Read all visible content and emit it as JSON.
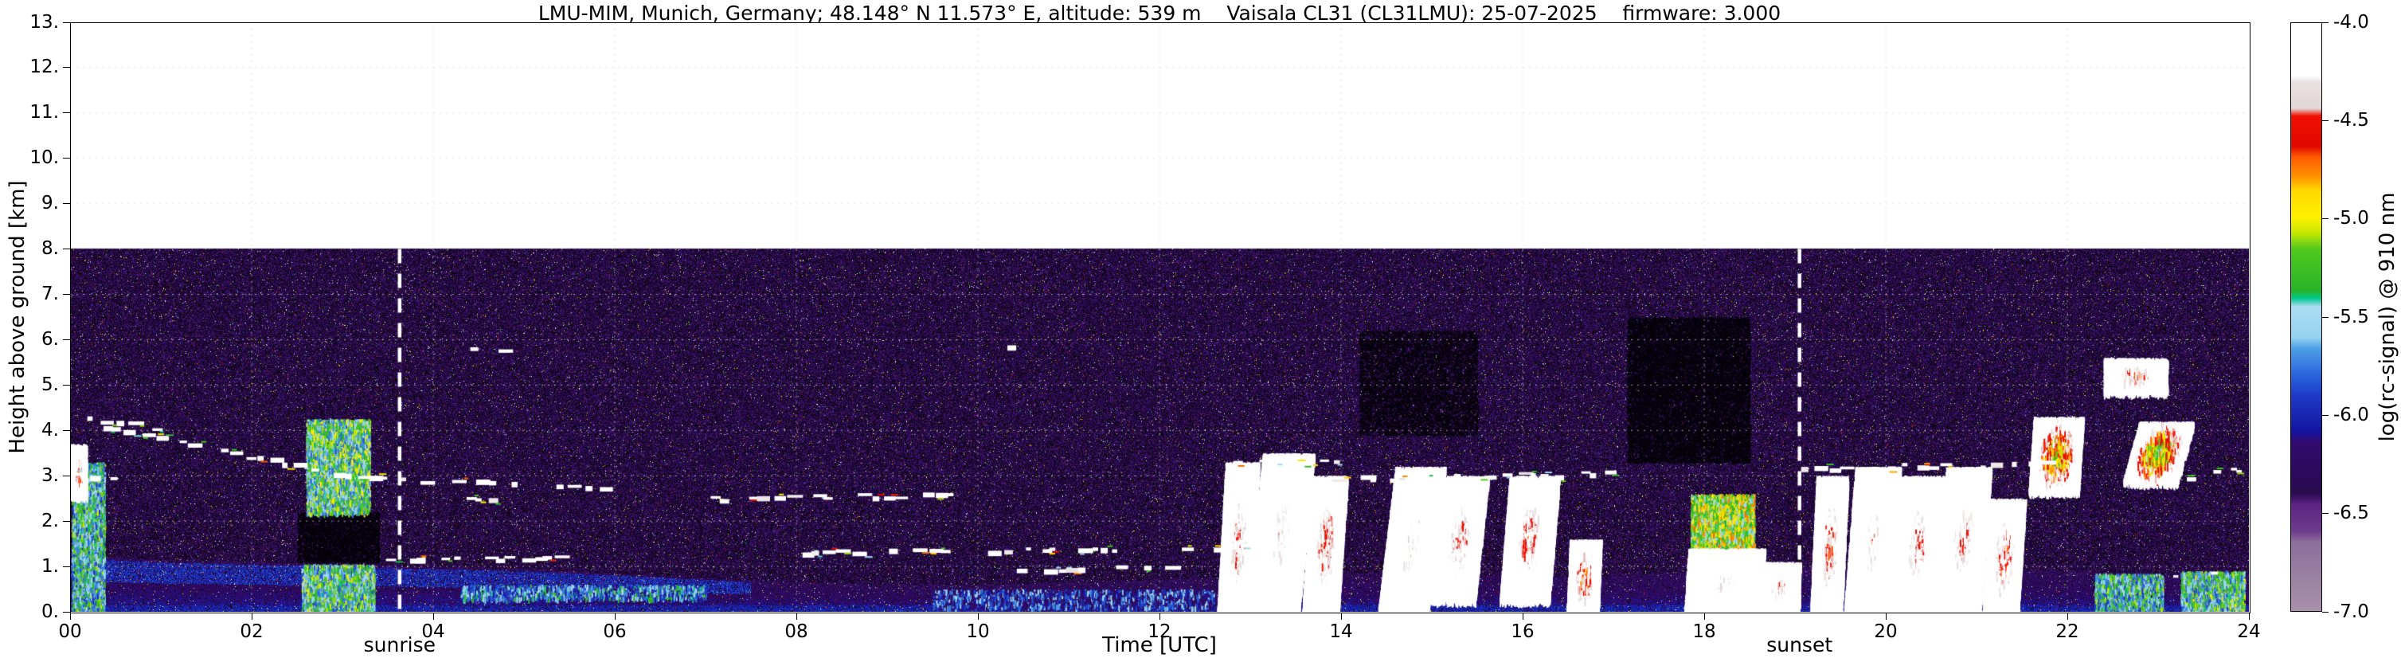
{
  "chart_data": {
    "type": "heatmap",
    "title": "LMU-MIM, Munich, Germany; 48.148° N 11.573° E, altitude: 539 m    Vaisala CL31 (CL31LMU): 25-07-2025    firmware: 3.000",
    "xlabel": "Time [UTC]",
    "ylabel": "Height above ground [km]",
    "xlim": [
      0,
      24
    ],
    "ylim": [
      0,
      13
    ],
    "data_top_km": 8,
    "grid": true,
    "xticks": [
      "00",
      "02",
      "04",
      "06",
      "08",
      "10",
      "12",
      "14",
      "16",
      "18",
      "20",
      "22",
      "24"
    ],
    "yticks": [
      "0.",
      "1.",
      "2.",
      "3.",
      "4.",
      "5.",
      "6.",
      "7.",
      "8.",
      "9.",
      "10.",
      "11.",
      "12.",
      "13."
    ],
    "colorbar": {
      "label": "log(rc-signal) @ 910 nm",
      "ticks": [
        -4.0,
        -4.5,
        -5.0,
        -5.5,
        -6.0,
        -6.5,
        -7.0
      ],
      "tick_labels": [
        "-4.0",
        "-4.5",
        "-5.0",
        "-5.5",
        "-6.0",
        "-6.5",
        "-7.0"
      ],
      "stops": [
        {
          "pos": 0.0,
          "color": "#ffffff"
        },
        {
          "pos": 0.09,
          "color": "#ffffff"
        },
        {
          "pos": 0.1,
          "color": "#eae2e2"
        },
        {
          "pos": 0.145,
          "color": "#e2d6d6"
        },
        {
          "pos": 0.158,
          "color": "#f01000"
        },
        {
          "pos": 0.21,
          "color": "#e00800"
        },
        {
          "pos": 0.228,
          "color": "#ff5a00"
        },
        {
          "pos": 0.26,
          "color": "#ff9000"
        },
        {
          "pos": 0.285,
          "color": "#ffd800"
        },
        {
          "pos": 0.33,
          "color": "#fff200"
        },
        {
          "pos": 0.356,
          "color": "#c8e800"
        },
        {
          "pos": 0.385,
          "color": "#50c81e"
        },
        {
          "pos": 0.455,
          "color": "#28b428"
        },
        {
          "pos": 0.468,
          "color": "#00c88c"
        },
        {
          "pos": 0.482,
          "color": "#aadcf0"
        },
        {
          "pos": 0.535,
          "color": "#96d2f0"
        },
        {
          "pos": 0.552,
          "color": "#50a0e6"
        },
        {
          "pos": 0.6,
          "color": "#2864dc"
        },
        {
          "pos": 0.632,
          "color": "#1e3cc8"
        },
        {
          "pos": 0.695,
          "color": "#1414a0"
        },
        {
          "pos": 0.712,
          "color": "#320a6e"
        },
        {
          "pos": 0.8,
          "color": "#2a0a50"
        },
        {
          "pos": 0.818,
          "color": "#5a2382"
        },
        {
          "pos": 0.865,
          "color": "#6e3c8c"
        },
        {
          "pos": 0.882,
          "color": "#8c6e9b"
        },
        {
          "pos": 1.0,
          "color": "#a891ab"
        }
      ]
    },
    "annotations": [
      {
        "label": "sunrise",
        "time_utc": 3.63
      },
      {
        "label": "sunset",
        "time_utc": 19.05
      }
    ],
    "features": {
      "boundary_layer_top_km": [
        1.25,
        1.15,
        1.1,
        1.05,
        1.0,
        0.95,
        0.85,
        0.75,
        0.65,
        0.6,
        0.6,
        0.65,
        0.7,
        0.8,
        0.85,
        0.85,
        0.8,
        0.8,
        0.9,
        1.0,
        1.0,
        0.95,
        0.9,
        0.85,
        0.85
      ],
      "plumes": [
        {
          "t": [
            0.02,
            0.38
          ],
          "h": [
            0.0,
            3.3
          ],
          "v": -5.5
        },
        {
          "t": [
            2.55,
            3.35
          ],
          "h": [
            0.0,
            1.05
          ],
          "v": -5.45
        },
        {
          "t": [
            2.6,
            3.3
          ],
          "h": [
            2.2,
            4.25
          ],
          "v": -5.4
        },
        {
          "t": [
            17.85,
            18.55
          ],
          "h": [
            0.0,
            2.6
          ],
          "v": -5.15
        },
        {
          "t": [
            22.3,
            23.05
          ],
          "h": [
            0.0,
            0.85
          ],
          "v": -5.5
        },
        {
          "t": [
            23.25,
            23.95
          ],
          "h": [
            0.0,
            0.9
          ],
          "v": -5.45
        },
        {
          "t": [
            4.3,
            7.0
          ],
          "h": [
            0.3,
            0.6
          ],
          "v": -5.7,
          "d": 0.3
        },
        {
          "t": [
            9.5,
            12.6
          ],
          "h": [
            0.1,
            0.5
          ],
          "v": -5.95,
          "d": 0.22
        }
      ],
      "cells": [
        {
          "t": [
            0.0,
            0.18
          ],
          "h": [
            2.6,
            3.7
          ],
          "core": -4.5,
          "tilt": 0
        },
        {
          "t": [
            12.68,
            13.05
          ],
          "h": [
            0.0,
            3.3
          ],
          "core": -4.25,
          "tilt": 0.25
        },
        {
          "t": [
            13.05,
            13.62
          ],
          "h": [
            0.0,
            3.5
          ],
          "core": -4.05,
          "tilt": 0.3
        },
        {
          "t": [
            13.62,
            14.02
          ],
          "h": [
            0.0,
            3.0
          ],
          "core": -4.3,
          "tilt": 0.25
        },
        {
          "t": [
            14.5,
            15.05
          ],
          "h": [
            0.0,
            3.2
          ],
          "core": -4.05,
          "tilt": 0.35
        },
        {
          "t": [
            15.05,
            15.55
          ],
          "h": [
            0.3,
            3.0
          ],
          "core": -4.2,
          "tilt": 0.3
        },
        {
          "t": [
            15.8,
            16.35
          ],
          "h": [
            0.3,
            3.0
          ],
          "core": -4.25,
          "tilt": 0.2
        },
        {
          "t": [
            16.5,
            16.85
          ],
          "h": [
            0.0,
            1.6
          ],
          "core": -4.5,
          "tilt": 0.1
        },
        {
          "t": [
            17.8,
            18.65
          ],
          "h": [
            0.0,
            1.4
          ],
          "core": -4.0,
          "tilt": 0.05
        },
        {
          "t": [
            18.6,
            19.05
          ],
          "h": [
            0.0,
            1.1
          ],
          "core": -4.15,
          "tilt": 0.05
        },
        {
          "t": [
            19.2,
            19.55
          ],
          "h": [
            0.0,
            3.0
          ],
          "core": -4.3,
          "tilt": 0.2
        },
        {
          "t": [
            19.6,
            20.1
          ],
          "h": [
            0.0,
            3.2
          ],
          "core": -4.05,
          "tilt": 0.25
        },
        {
          "t": [
            20.1,
            20.6
          ],
          "h": [
            0.0,
            3.0
          ],
          "core": -4.2,
          "tilt": 0.25
        },
        {
          "t": [
            20.6,
            21.1
          ],
          "h": [
            0.0,
            3.2
          ],
          "core": -4.15,
          "tilt": 0.25
        },
        {
          "t": [
            21.1,
            21.5
          ],
          "h": [
            0.0,
            2.5
          ],
          "core": -4.35,
          "tilt": 0.2
        },
        {
          "t": [
            21.6,
            22.15
          ],
          "h": [
            2.7,
            4.3
          ],
          "core": -4.9,
          "tilt": 0.1
        },
        {
          "t": [
            22.4,
            23.1
          ],
          "h": [
            4.9,
            5.6
          ],
          "core": -4.35,
          "tilt": 0
        },
        {
          "t": [
            22.7,
            23.3
          ],
          "h": [
            2.9,
            4.2
          ],
          "core": -5.1,
          "tilt": 0.3
        }
      ],
      "cloud_lines": [
        {
          "t": [
            0.0,
            1.3
          ],
          "h": [
            4.35,
            3.95
          ]
        },
        {
          "t": [
            0.3,
            3.0
          ],
          "h": [
            4.1,
            3.05
          ]
        },
        {
          "t": [
            0.0,
            0.7
          ],
          "h": [
            3.05,
            2.95
          ]
        },
        {
          "t": [
            3.0,
            5.0
          ],
          "h": [
            3.0,
            2.82
          ]
        },
        {
          "t": [
            3.4,
            5.6
          ],
          "h": [
            1.2,
            1.22
          ]
        },
        {
          "t": [
            4.35,
            4.8
          ],
          "h": [
            5.8,
            5.78
          ]
        },
        {
          "t": [
            4.3,
            4.75
          ],
          "h": [
            2.5,
            2.47
          ]
        },
        {
          "t": [
            5.3,
            5.9
          ],
          "h": [
            2.78,
            2.75
          ]
        },
        {
          "t": [
            7.0,
            9.9
          ],
          "h": [
            2.5,
            2.62
          ]
        },
        {
          "t": [
            8.0,
            13.0
          ],
          "h": [
            1.35,
            1.45
          ]
        },
        {
          "t": [
            10.0,
            12.6
          ],
          "h": [
            0.95,
            1.05
          ]
        },
        {
          "t": [
            10.15,
            10.45
          ],
          "h": [
            5.9,
            5.88
          ]
        },
        {
          "t": [
            12.8,
            14.0
          ],
          "h": [
            3.35,
            3.3
          ]
        },
        {
          "t": [
            13.9,
            17.0
          ],
          "h": [
            2.95,
            3.08
          ]
        },
        {
          "t": [
            18.9,
            21.8
          ],
          "h": [
            3.18,
            3.3
          ]
        },
        {
          "t": [
            23.3,
            24.0
          ],
          "h": [
            3.0,
            3.2
          ]
        },
        {
          "t": [
            23.15,
            23.7
          ],
          "h": [
            0.85,
            0.88
          ]
        }
      ],
      "dark_patches": [
        {
          "t": [
            2.5,
            3.4
          ],
          "h": [
            1.1,
            2.2
          ],
          "d": 0.5
        },
        {
          "t": [
            17.15,
            18.5
          ],
          "h": [
            3.3,
            6.5
          ],
          "d": 0.5
        },
        {
          "t": [
            14.2,
            15.5
          ],
          "h": [
            3.9,
            6.2
          ],
          "d": 0.3
        }
      ]
    }
  }
}
